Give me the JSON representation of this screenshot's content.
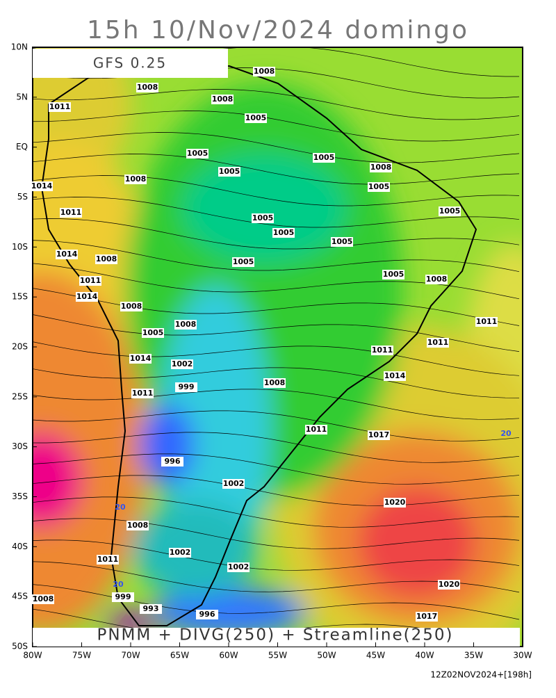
{
  "title": "15h 10/Nov/2024 domingo",
  "model": "GFS 0.25",
  "caption": "PNMM + DIVG(250) + Streamline(250)",
  "run": "12Z02NOV2024+[198h]",
  "lat_labels": [
    "10N",
    "5N",
    "EQ",
    "5S",
    "10S",
    "15S",
    "20S",
    "25S",
    "30S",
    "35S",
    "40S",
    "45S",
    "50S"
  ],
  "lon_labels": [
    "80W",
    "75W",
    "70W",
    "65W",
    "60W",
    "55W",
    "50W",
    "45W",
    "40W",
    "35W",
    "30W"
  ],
  "contour_labels": [
    "1008",
    "1008",
    "1008",
    "1011",
    "1005",
    "1005",
    "1005",
    "1008",
    "1005",
    "1014",
    "1011",
    "1008",
    "1005",
    "1005",
    "1005",
    "1005",
    "1014",
    "1008",
    "1011",
    "1014",
    "1005",
    "1005",
    "1005",
    "1008",
    "1008",
    "1008",
    "1011",
    "1011",
    "1011",
    "1005",
    "1014",
    "1002",
    "1008",
    "999",
    "1011",
    "1014",
    "1011",
    "1017",
    "996",
    "1002",
    "1020",
    "1008",
    "1002",
    "1002",
    "1011",
    "1020",
    "999",
    "993",
    "996",
    "1017",
    "1008",
    "20",
    "20",
    "20"
  ]
}
